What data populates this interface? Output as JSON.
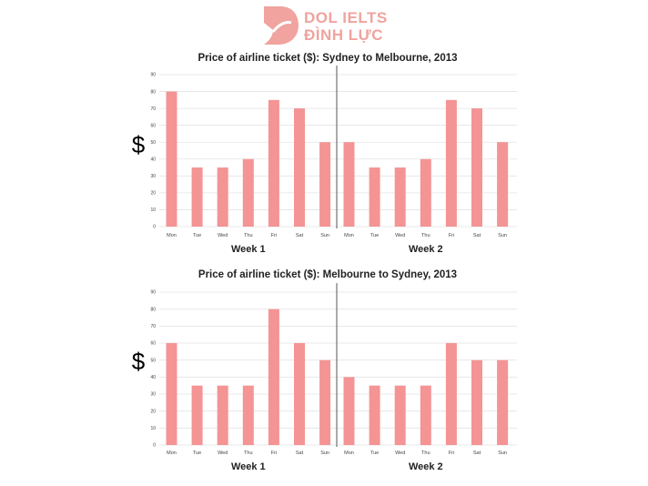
{
  "brand": {
    "line1": "DOL IELTS",
    "line2": "ĐÌNH LỰC",
    "logo_color": "#f0a39f"
  },
  "colors": {
    "bar": "#f49494",
    "grid": "#e3e3e3",
    "divider": "#555555"
  },
  "chart_data": [
    {
      "type": "bar",
      "title": "Price of airline ticket ($): Sydney to Melbourne, 2013",
      "ylabel": "$",
      "xlabel": "",
      "ylim": [
        0,
        90
      ],
      "yticks": [
        0,
        10,
        20,
        30,
        40,
        50,
        60,
        70,
        80,
        90
      ],
      "grid": true,
      "groups": [
        {
          "name": "Week 1",
          "categories": [
            "Mon",
            "Tue",
            "Wed",
            "Thu",
            "Fri",
            "Sat",
            "Sun"
          ],
          "values": [
            80,
            35,
            35,
            40,
            75,
            70,
            50
          ]
        },
        {
          "name": "Week 2",
          "categories": [
            "Mon",
            "Tue",
            "Wed",
            "Thu",
            "Fri",
            "Sat",
            "Sun"
          ],
          "values": [
            50,
            35,
            35,
            40,
            75,
            70,
            50
          ]
        }
      ]
    },
    {
      "type": "bar",
      "title": "Price of airline ticket ($): Melbourne to Sydney, 2013",
      "ylabel": "$",
      "xlabel": "",
      "ylim": [
        0,
        90
      ],
      "yticks": [
        0,
        10,
        20,
        30,
        40,
        50,
        60,
        70,
        80,
        90
      ],
      "grid": true,
      "groups": [
        {
          "name": "Week 1",
          "categories": [
            "Mon",
            "Tue",
            "Wed",
            "Thu",
            "Fri",
            "Sat",
            "Sun"
          ],
          "values": [
            60,
            35,
            35,
            35,
            80,
            60,
            50
          ]
        },
        {
          "name": "Week 2",
          "categories": [
            "Mon",
            "Tue",
            "Wed",
            "Thu",
            "Fri",
            "Sat",
            "Sun"
          ],
          "values": [
            40,
            35,
            35,
            35,
            60,
            50,
            50
          ]
        }
      ]
    }
  ]
}
